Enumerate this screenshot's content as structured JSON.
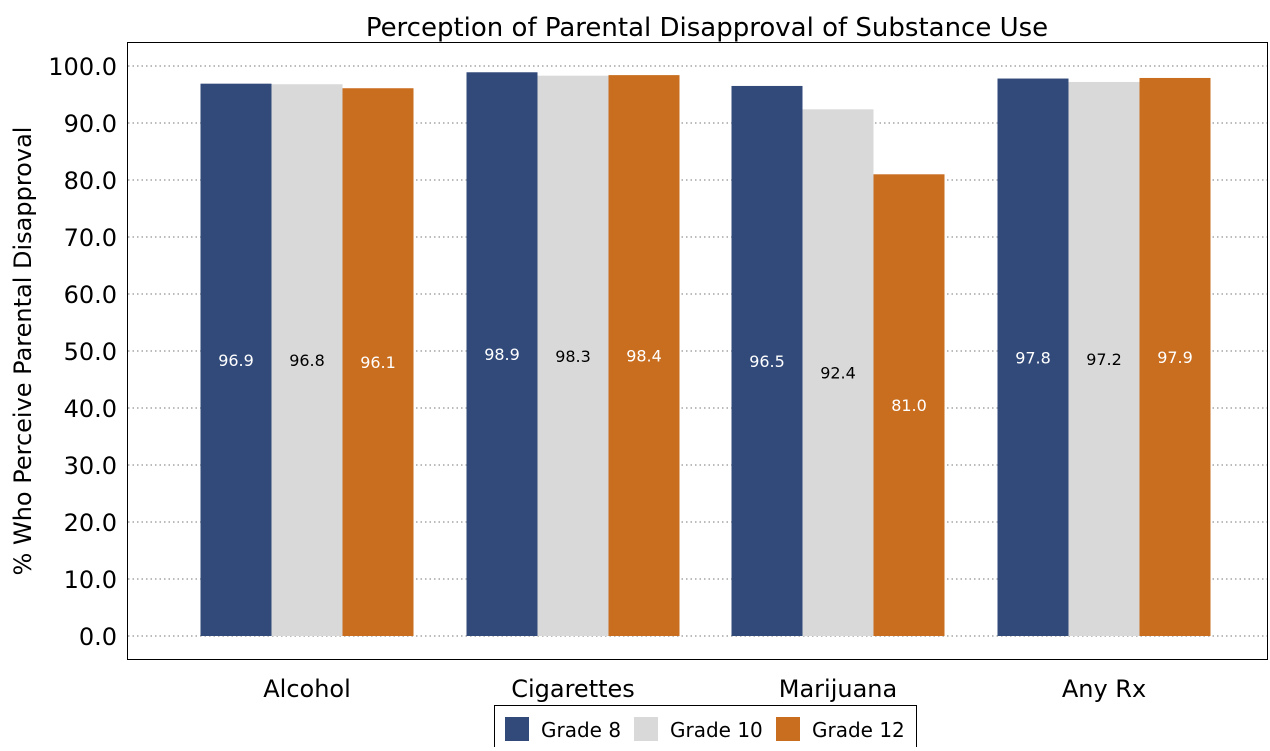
{
  "chart_data": {
    "type": "bar",
    "title": "Perception of Parental Disapproval of Substance Use",
    "xlabel": "",
    "ylabel": "% Who Perceive Parental Disapproval",
    "ylim": [
      0,
      104.5
    ],
    "yticks": [
      "0.0",
      "10.0",
      "20.0",
      "30.0",
      "40.0",
      "50.0",
      "60.0",
      "70.0",
      "80.0",
      "90.0",
      "100.0"
    ],
    "categories": [
      "Alcohol",
      "Cigarettes",
      "Marijuana",
      "Any Rx"
    ],
    "series": [
      {
        "name": "Grade 8",
        "color": "#324a7a",
        "label_color": "#ffffff",
        "values": [
          96.9,
          98.9,
          96.5,
          97.8
        ]
      },
      {
        "name": "Grade 10",
        "color": "#d9d9d9",
        "label_color": "#000000",
        "values": [
          96.8,
          98.3,
          92.4,
          97.2
        ]
      },
      {
        "name": "Grade 12",
        "color": "#c96d1e",
        "label_color": "#ffffff",
        "values": [
          96.1,
          98.4,
          81.0,
          97.9
        ]
      }
    ],
    "grid": {
      "y": true,
      "style": "dotted"
    },
    "legend": {
      "position": "bottom-center"
    },
    "data_labels": "center"
  }
}
